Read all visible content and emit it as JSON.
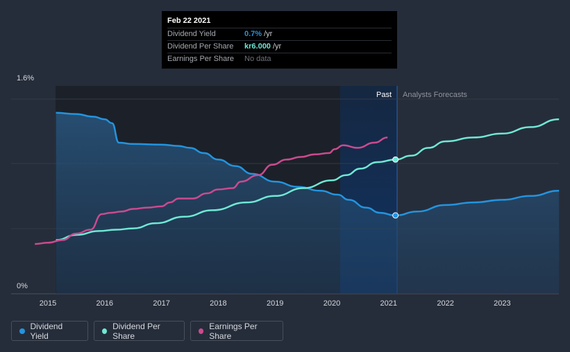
{
  "chart_data": {
    "type": "line",
    "y_axis": {
      "top_label": "1.6%",
      "bottom_label": "0%",
      "ylim": [
        0,
        1.6
      ]
    },
    "x_ticks": [
      "2015",
      "2016",
      "2017",
      "2018",
      "2019",
      "2020",
      "2021",
      "2022",
      "2023"
    ],
    "region_labels": {
      "past": "Past",
      "forecast": "Analysts Forecasts"
    },
    "series": [
      {
        "name": "Dividend Yield",
        "color": "#2394df",
        "points": [
          [
            2015.14,
            1.5
          ],
          [
            2015.5,
            1.49
          ],
          [
            2015.8,
            1.47
          ],
          [
            2016.0,
            1.45
          ],
          [
            2016.13,
            1.42
          ],
          [
            2016.25,
            1.27
          ],
          [
            2016.5,
            1.26
          ],
          [
            2017.0,
            1.255
          ],
          [
            2017.3,
            1.245
          ],
          [
            2017.5,
            1.23
          ],
          [
            2017.75,
            1.19
          ],
          [
            2018.0,
            1.14
          ],
          [
            2018.3,
            1.09
          ],
          [
            2018.6,
            1.03
          ],
          [
            2019.0,
            0.97
          ],
          [
            2019.4,
            0.93
          ],
          [
            2019.8,
            0.9
          ],
          [
            2020.1,
            0.87
          ],
          [
            2020.3,
            0.83
          ],
          [
            2020.6,
            0.77
          ],
          [
            2020.85,
            0.73
          ],
          [
            2021.12,
            0.71
          ],
          [
            2021.5,
            0.74
          ],
          [
            2022.0,
            0.79
          ],
          [
            2022.5,
            0.81
          ],
          [
            2023.0,
            0.83
          ],
          [
            2023.5,
            0.86
          ],
          [
            2024.0,
            0.9
          ]
        ],
        "marker_at": 2021.12
      },
      {
        "name": "Dividend Per Share",
        "color": "#6fe8d5",
        "points": [
          [
            2015.14,
            0.52
          ],
          [
            2015.5,
            0.56
          ],
          [
            2015.9,
            0.59
          ],
          [
            2016.2,
            0.6
          ],
          [
            2016.5,
            0.61
          ],
          [
            2016.9,
            0.65
          ],
          [
            2017.4,
            0.7
          ],
          [
            2017.9,
            0.75
          ],
          [
            2018.5,
            0.81
          ],
          [
            2019.0,
            0.86
          ],
          [
            2019.5,
            0.92
          ],
          [
            2020.0,
            0.98
          ],
          [
            2020.25,
            1.02
          ],
          [
            2020.5,
            1.07
          ],
          [
            2020.8,
            1.12
          ],
          [
            2021.12,
            1.14
          ],
          [
            2021.4,
            1.17
          ],
          [
            2021.7,
            1.23
          ],
          [
            2022.0,
            1.28
          ],
          [
            2022.5,
            1.31
          ],
          [
            2023.0,
            1.34
          ],
          [
            2023.5,
            1.39
          ],
          [
            2024.0,
            1.45
          ]
        ],
        "marker_at": 2021.12
      },
      {
        "name": "Earnings Per Share",
        "color": "#cc4a8f",
        "points": [
          [
            2014.77,
            0.49
          ],
          [
            2015.0,
            0.5
          ],
          [
            2015.25,
            0.52
          ],
          [
            2015.5,
            0.57
          ],
          [
            2015.75,
            0.6
          ],
          [
            2015.95,
            0.72
          ],
          [
            2016.1,
            0.73
          ],
          [
            2016.3,
            0.74
          ],
          [
            2016.5,
            0.76
          ],
          [
            2016.75,
            0.77
          ],
          [
            2017.0,
            0.78
          ],
          [
            2017.15,
            0.81
          ],
          [
            2017.3,
            0.84
          ],
          [
            2017.55,
            0.84
          ],
          [
            2017.8,
            0.88
          ],
          [
            2018.0,
            0.91
          ],
          [
            2018.25,
            0.92
          ],
          [
            2018.4,
            0.97
          ],
          [
            2018.7,
            1.02
          ],
          [
            2018.95,
            1.1
          ],
          [
            2019.2,
            1.14
          ],
          [
            2019.45,
            1.16
          ],
          [
            2019.7,
            1.18
          ],
          [
            2019.95,
            1.19
          ],
          [
            2020.05,
            1.22
          ],
          [
            2020.2,
            1.25
          ],
          [
            2020.45,
            1.23
          ],
          [
            2020.75,
            1.27
          ],
          [
            2020.98,
            1.31
          ]
        ]
      }
    ],
    "legend": [
      "Dividend Yield",
      "Dividend Per Share",
      "Earnings Per Share"
    ]
  },
  "tooltip": {
    "date": "Feb 22 2021",
    "rows": [
      {
        "label": "Dividend Yield",
        "value": "0.7%",
        "unit": "/yr",
        "color": "#2394df"
      },
      {
        "label": "Dividend Per Share",
        "value": "kr6.000",
        "unit": "/yr",
        "color": "#6fe8d5"
      },
      {
        "label": "Earnings Per Share",
        "value": "No data",
        "unit": "",
        "color": "#6e737b"
      }
    ]
  },
  "colors": {
    "background": "#262d3a",
    "past_shade": "#1c2129",
    "recent_shade": "#13305a",
    "grid": "#3a414d"
  }
}
